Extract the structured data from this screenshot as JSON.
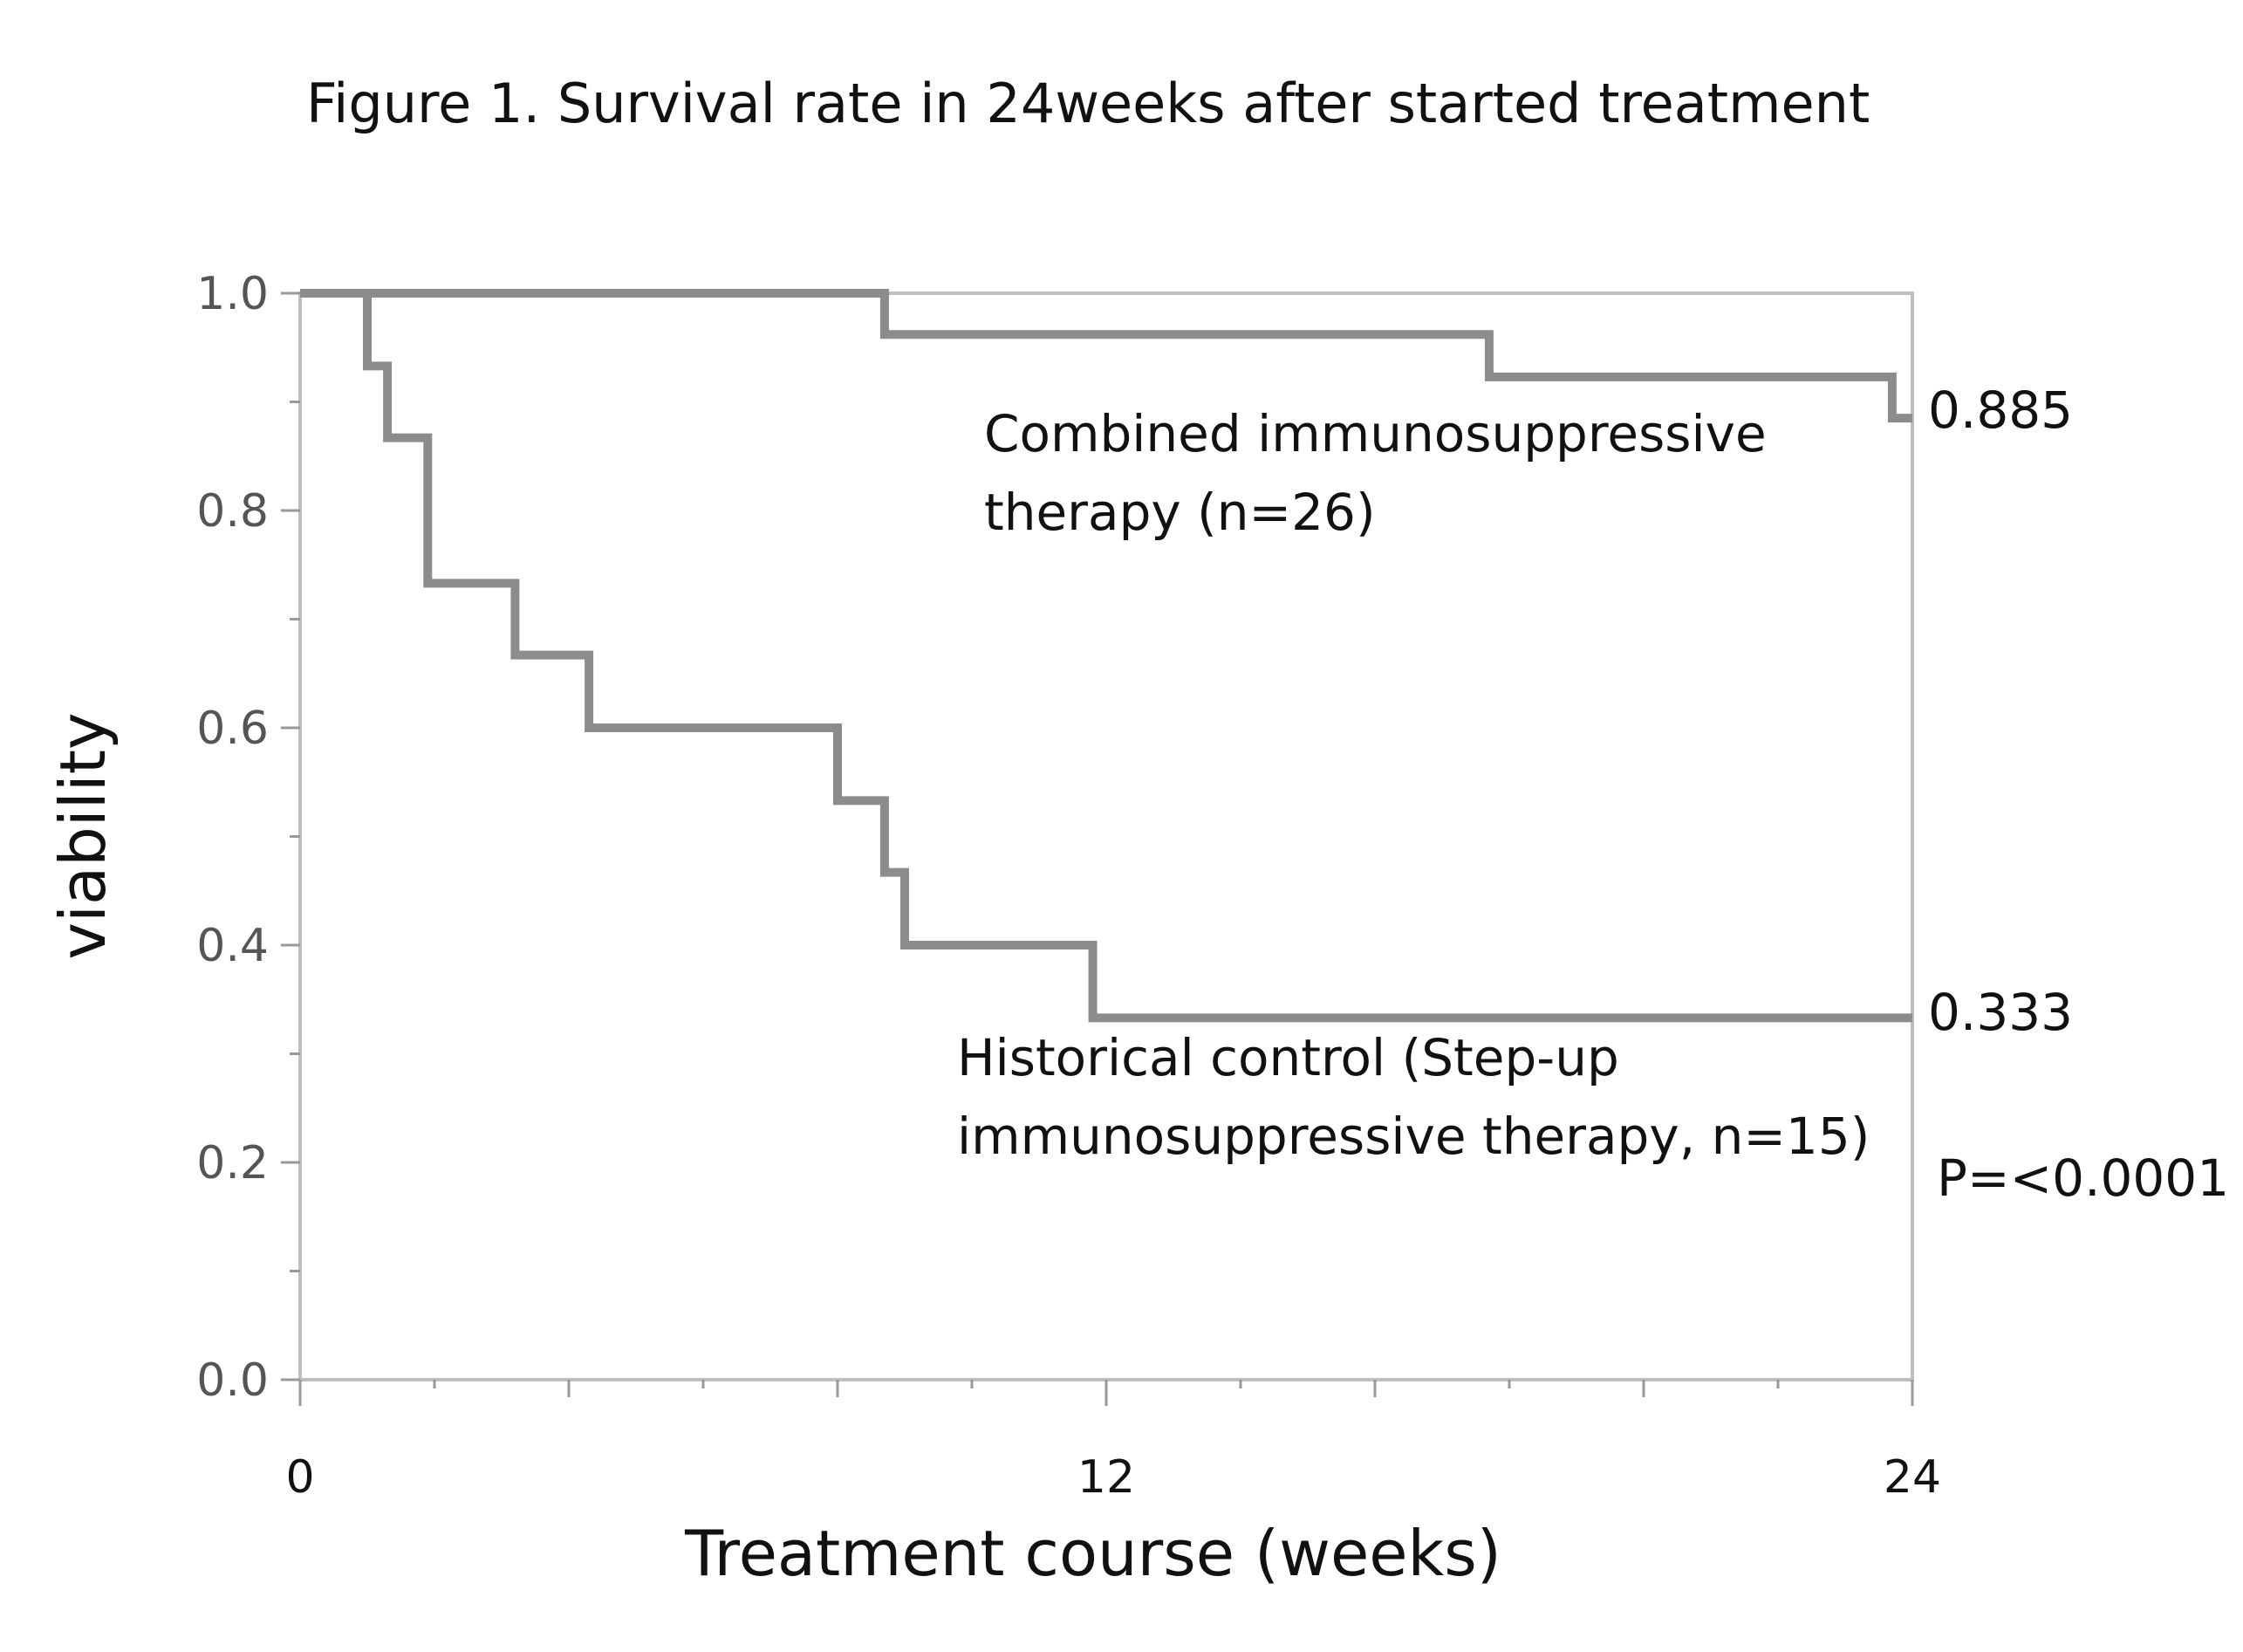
{
  "chart_data": {
    "type": "line",
    "title": "Figure 1. Survival rate in 24weeks after started treatment",
    "xlabel": "Treatment course (weeks)",
    "ylabel": "viability",
    "xlim": [
      0,
      24
    ],
    "ylim": [
      0,
      1.0
    ],
    "x_ticks": [
      "0",
      "12",
      "24"
    ],
    "y_ticks": [
      "0.0",
      "0.2",
      "0.4",
      "0.6",
      "0.8",
      "1.0"
    ],
    "series": [
      {
        "name": "Combined immunosuppressive therapy (n=26)",
        "label_lines": [
          "Combined immunosuppressive",
          "therapy (n=26)"
        ],
        "step": true,
        "color": "#8c8c8c",
        "x": [
          0,
          8.7,
          17.7,
          23.7,
          24
        ],
        "y": [
          1.0,
          0.962,
          0.923,
          0.885,
          0.885
        ],
        "end_label": "0.885"
      },
      {
        "name": "Historical control (Step-up immunosuppressive therapy, n=15)",
        "label_lines": [
          "Historical control (Step-up",
          "immunosuppressive therapy, n=15)"
        ],
        "step": true,
        "color": "#8c8c8c",
        "x": [
          0,
          1.0,
          1.3,
          1.9,
          3.2,
          4.3,
          8.0,
          8.7,
          9.0,
          11.8,
          24
        ],
        "y": [
          1.0,
          0.933,
          0.867,
          0.733,
          0.667,
          0.6,
          0.533,
          0.467,
          0.4,
          0.333,
          0.333
        ],
        "end_label": "0.333"
      }
    ],
    "annotations": [
      "P=<0.0001"
    ],
    "grid": false,
    "legend": "inline"
  }
}
